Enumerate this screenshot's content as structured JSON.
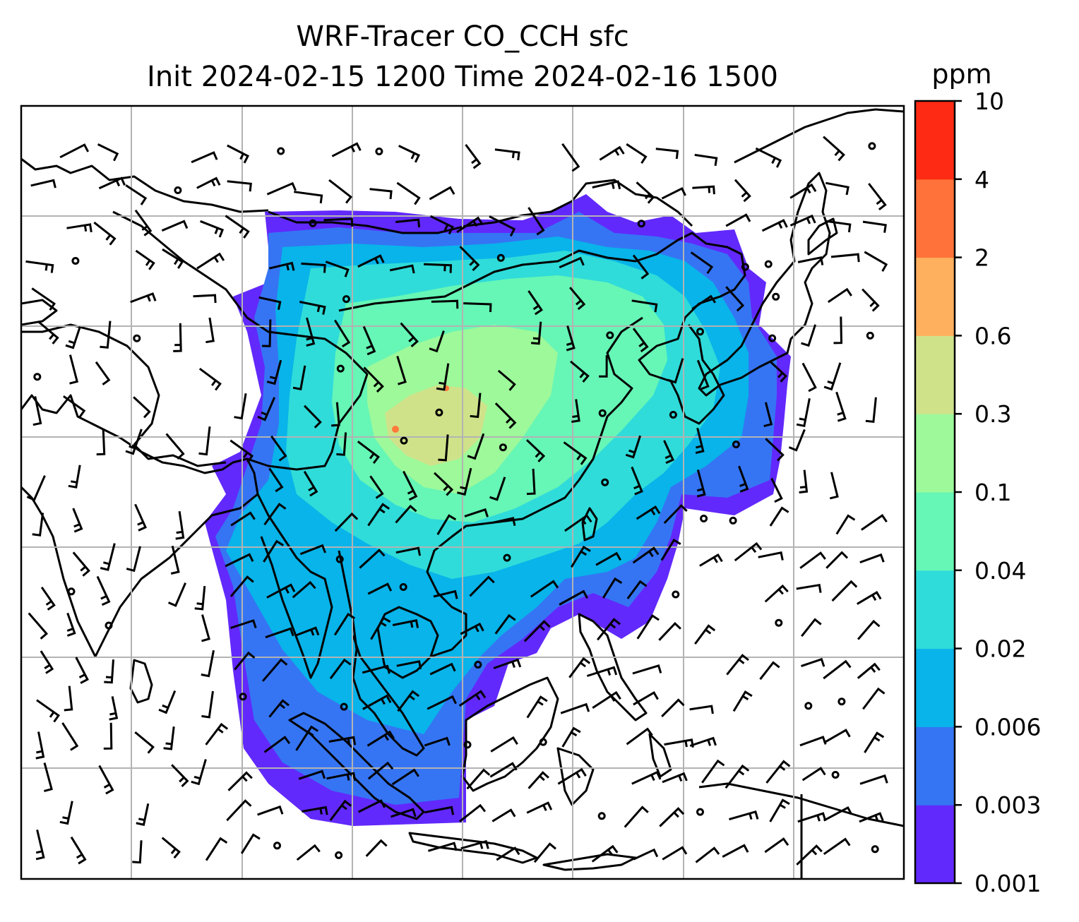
{
  "title": {
    "line1": "WRF-Tracer CO_CCH sfc",
    "line2": "Init 2024-02-15 1200 Time 2024-02-16 1500"
  },
  "colorbar": {
    "unit": "ppm",
    "ticks": [
      "10",
      "4",
      "2",
      "0.6",
      "0.3",
      "0.1",
      "0.04",
      "0.02",
      "0.006",
      "0.003",
      "0.001"
    ],
    "colors": [
      "#6229fc",
      "#3575f4",
      "#08b4e9",
      "#2fdcd9",
      "#66f6b6",
      "#9df99a",
      "#cfe28a",
      "#ffb05f",
      "#ff723a",
      "#ff2a14"
    ]
  },
  "map": {
    "frame_color": "#000000",
    "grid_color": "#b3b3b3",
    "coastline_color": "#000000",
    "barb_color": "#000000",
    "field_colors": {
      "very_low": "#6229fc",
      "low": "#3575f4",
      "mid_low": "#08b4e9",
      "mid": "#2fdcd9",
      "mid_high": "#66f6b6",
      "high": "#9df99a",
      "higher": "#cfe28a",
      "peak": "#ff7a3a"
    }
  }
}
